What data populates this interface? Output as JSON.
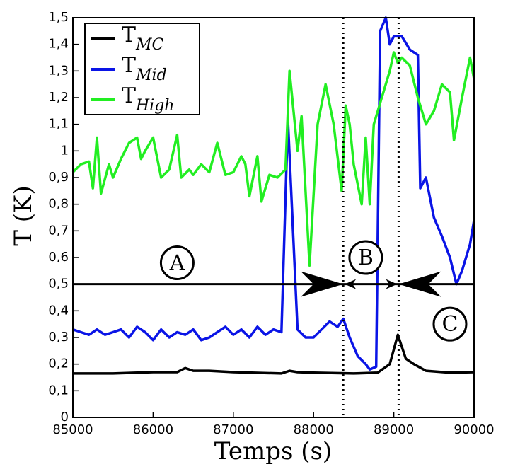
{
  "chart_data": {
    "type": "line",
    "xlabel": "Temps (s)",
    "ylabel": "T (K)",
    "xlim": [
      85000,
      90000
    ],
    "xticks": [
      85000,
      86000,
      87000,
      88000,
      89000,
      90000
    ],
    "ylim": [
      0,
      1.5
    ],
    "yticks": [
      0,
      {
        "value": 0.1,
        "label": "0,1"
      },
      {
        "value": 0.2,
        "label": "0,2"
      },
      {
        "value": 0.3,
        "label": "0,3"
      },
      {
        "value": 0.4,
        "label": "0,4"
      },
      {
        "value": 0.5,
        "label": "0,5"
      },
      {
        "value": 0.6,
        "label": "0,6"
      },
      {
        "value": 0.7,
        "label": "0,7"
      },
      {
        "value": 0.8,
        "label": "0,8"
      },
      {
        "value": 0.9,
        "label": "0,9"
      },
      1,
      {
        "value": 1.1,
        "label": "1,1"
      },
      {
        "value": 1.2,
        "label": "1,2"
      },
      {
        "value": 1.3,
        "label": "1,3"
      },
      {
        "value": 1.4,
        "label": "1,4"
      },
      {
        "value": 1.5,
        "label": "1,5"
      }
    ],
    "legend": "upper left",
    "vlines": [
      88370,
      89060
    ],
    "hline": 0.5,
    "annotations": [
      {
        "text": "A",
        "x": 86300,
        "y": 0.58
      },
      {
        "text": "B",
        "x": 88650,
        "y": 0.6
      },
      {
        "text": "C",
        "x": 89700,
        "y": 0.35
      }
    ],
    "series": [
      {
        "name": "T",
        "subscript": "MC",
        "color": "#000000",
        "x": [
          85000,
          85500,
          86000,
          86300,
          86400,
          86500,
          86700,
          87000,
          87600,
          87700,
          87800,
          88000,
          88500,
          88800,
          88950,
          89050,
          89150,
          89250,
          89400,
          89700,
          90000
        ],
        "values": [
          0.165,
          0.165,
          0.17,
          0.17,
          0.185,
          0.175,
          0.175,
          0.17,
          0.165,
          0.175,
          0.17,
          0.168,
          0.165,
          0.168,
          0.2,
          0.31,
          0.22,
          0.2,
          0.175,
          0.168,
          0.17
        ]
      },
      {
        "name": "T",
        "subscript": "Mid",
        "color": "#0a14e6",
        "x": [
          85000,
          85100,
          85200,
          85300,
          85400,
          85500,
          85600,
          85700,
          85800,
          85900,
          86000,
          86100,
          86200,
          86300,
          86400,
          86500,
          86600,
          86700,
          86800,
          86900,
          87000,
          87100,
          87200,
          87300,
          87400,
          87500,
          87600,
          87680,
          87800,
          87900,
          88000,
          88100,
          88200,
          88300,
          88370,
          88450,
          88550,
          88650,
          88700,
          88780,
          88830,
          88900,
          88950,
          89000,
          89100,
          89200,
          89300,
          89330,
          89400,
          89500,
          89600,
          89700,
          89780,
          89850,
          89950,
          90000
        ],
        "values": [
          0.33,
          0.32,
          0.31,
          0.33,
          0.31,
          0.32,
          0.33,
          0.3,
          0.34,
          0.32,
          0.29,
          0.33,
          0.3,
          0.32,
          0.31,
          0.33,
          0.29,
          0.3,
          0.32,
          0.34,
          0.31,
          0.33,
          0.3,
          0.34,
          0.31,
          0.33,
          0.32,
          1.12,
          0.33,
          0.3,
          0.3,
          0.33,
          0.36,
          0.34,
          0.37,
          0.3,
          0.23,
          0.2,
          0.18,
          0.19,
          1.45,
          1.5,
          1.4,
          1.43,
          1.43,
          1.38,
          1.36,
          0.86,
          0.9,
          0.75,
          0.68,
          0.6,
          0.5,
          0.55,
          0.65,
          0.74
        ]
      },
      {
        "name": "T",
        "subscript": "High",
        "color": "#22ee22",
        "x": [
          85000,
          85100,
          85200,
          85250,
          85300,
          85350,
          85450,
          85500,
          85600,
          85700,
          85800,
          85850,
          85900,
          86000,
          86100,
          86200,
          86300,
          86350,
          86450,
          86500,
          86600,
          86700,
          86800,
          86900,
          87000,
          87100,
          87150,
          87200,
          87300,
          87350,
          87450,
          87550,
          87650,
          87700,
          87800,
          87850,
          87950,
          88050,
          88150,
          88250,
          88350,
          88400,
          88450,
          88500,
          88600,
          88650,
          88700,
          88750,
          88850,
          88950,
          89000,
          89050,
          89100,
          89200,
          89300,
          89400,
          89500,
          89600,
          89700,
          89750,
          89850,
          89950,
          90000
        ],
        "values": [
          0.92,
          0.95,
          0.96,
          0.86,
          1.05,
          0.84,
          0.95,
          0.9,
          0.97,
          1.03,
          1.05,
          0.97,
          1.0,
          1.05,
          0.9,
          0.93,
          1.06,
          0.9,
          0.93,
          0.91,
          0.95,
          0.92,
          1.03,
          0.91,
          0.92,
          0.98,
          0.95,
          0.83,
          0.98,
          0.81,
          0.91,
          0.9,
          0.93,
          1.3,
          1.0,
          1.13,
          0.57,
          1.1,
          1.25,
          1.1,
          0.85,
          1.17,
          1.1,
          0.95,
          0.8,
          1.05,
          0.8,
          1.1,
          1.2,
          1.3,
          1.37,
          1.33,
          1.35,
          1.32,
          1.2,
          1.1,
          1.15,
          1.25,
          1.22,
          1.04,
          1.2,
          1.35,
          1.27
        ]
      }
    ]
  }
}
